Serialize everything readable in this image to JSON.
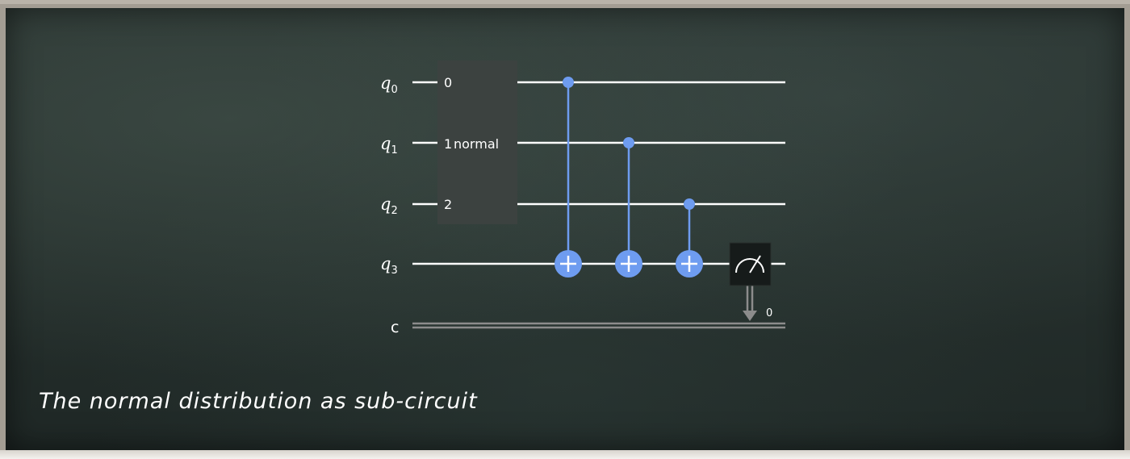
{
  "circuit": {
    "qubits": [
      {
        "letter": "q",
        "index": "0"
      },
      {
        "letter": "q",
        "index": "1"
      },
      {
        "letter": "q",
        "index": "2"
      },
      {
        "letter": "q",
        "index": "3"
      }
    ],
    "classical_register": "c",
    "subcircuit": {
      "name": "normal",
      "ports": [
        "0",
        "1",
        "2"
      ]
    },
    "cnots": [
      {
        "control": "q0",
        "target": "q3"
      },
      {
        "control": "q1",
        "target": "q3"
      },
      {
        "control": "q2",
        "target": "q3"
      }
    ],
    "measurement": {
      "qubit": "q3",
      "classical_bit": "0"
    },
    "colors": {
      "wire": "#ffffff",
      "cnot": "#6e9cf0",
      "gate_box": "#3c4240",
      "measure_box": "#161b1a",
      "classical_wire": "#8c8c8c"
    }
  },
  "caption": "The normal distribution as sub-circuit"
}
